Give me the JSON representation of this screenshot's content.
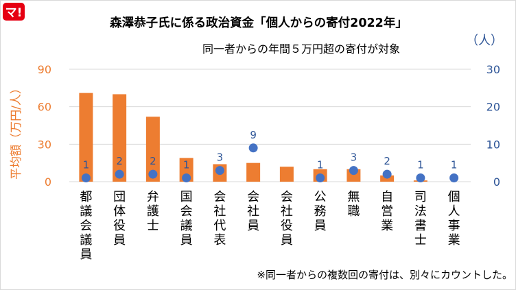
{
  "logo": {
    "text": "マ!",
    "color": "#e60012"
  },
  "chart_data": {
    "type": "bar",
    "title": "森澤恭子氏に係る政治資金「個人からの寄付2022年」",
    "subtitle": "同一者からの年間５万円超の寄付が対象",
    "ylabel": "平均額（万円/人）",
    "y2label": "（人）",
    "categories": [
      "都議会議員",
      "団体役員",
      "弁護士",
      "国会議員",
      "会社代表",
      "会社員",
      "会社役員",
      "公務員",
      "無職",
      "自営業",
      "司法書士",
      "個人事業"
    ],
    "ylim": [
      0,
      90
    ],
    "yticks": [
      0,
      30,
      60,
      90
    ],
    "y2lim": [
      0,
      30
    ],
    "y2ticks": [
      0,
      10,
      20,
      30
    ],
    "grid": true,
    "series": [
      {
        "kind": "bar",
        "axis": "left",
        "color": "#ed7d31",
        "values": [
          71,
          70,
          52,
          19,
          14,
          15,
          12,
          10,
          10,
          5,
          1,
          0
        ]
      },
      {
        "kind": "scatter",
        "axis": "right",
        "color": "#4472c4",
        "values": [
          1,
          2,
          2,
          1,
          3,
          9,
          null,
          1,
          3,
          2,
          1,
          1
        ],
        "labels": [
          "1",
          "2",
          "2",
          "1",
          "3",
          "9",
          "",
          "1",
          "3",
          "2",
          "1",
          "1"
        ],
        "label_color": "#2e5597"
      }
    ],
    "footnote": "※同一者からの複数回の寄付は、別々にカウントした。",
    "colors": {
      "left_axis": "#ed7d31",
      "right_axis": "#2e5597",
      "grid": "#d9d9d9",
      "text": "#000000"
    }
  }
}
